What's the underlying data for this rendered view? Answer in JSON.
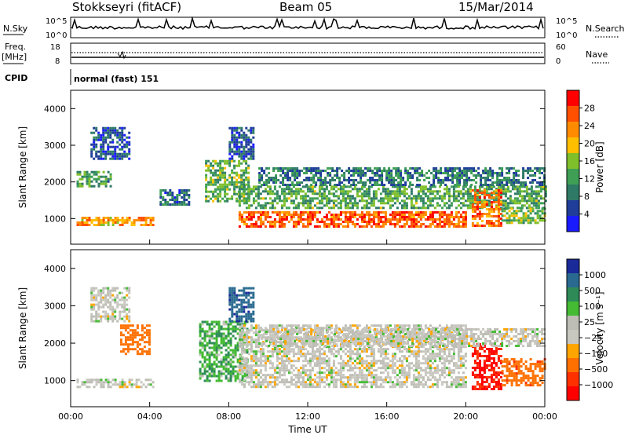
{
  "header": {
    "station": "Stokkseyri (fitACF)",
    "beam": "Beam 05",
    "date": "15/Mar/2014"
  },
  "strips": {
    "nsky_label": "N.Sky",
    "nsky_ticks": [
      "10^5",
      "10^0"
    ],
    "nsearch_label": "N.Search",
    "nsearch_ticks": [
      "10^5",
      "10^0"
    ],
    "freq_label": "Freq.",
    "freq_unit": "[MHz]",
    "freq_ticks": [
      "18",
      "8"
    ],
    "nave_label": "Nave",
    "nave_ticks": [
      "60",
      "0"
    ],
    "cpid_label": "CPID",
    "cpid_value": "normal (fast) 151"
  },
  "colors": {
    "power_scale": [
      "#1a1aff",
      "#1f3d99",
      "#2e7a66",
      "#3e9f55",
      "#7fbf2a",
      "#ffbf00",
      "#ff8c00",
      "#ff5000",
      "#ff0000"
    ],
    "velocity_scale": [
      "#1a2a99",
      "#2a6a90",
      "#2e8b57",
      "#44bb33",
      "#bdbdb5",
      "#c8c8c0",
      "#ffa500",
      "#ff7000",
      "#ff3000",
      "#ff0000"
    ]
  },
  "chart_data": [
    {
      "type": "heatmap",
      "panel": "power",
      "ylabel": "Slant Range [km]",
      "xlabel": "",
      "xlim": [
        0,
        24
      ],
      "ylim": [
        300,
        4500
      ],
      "yticks": [
        "1000",
        "2000",
        "3000",
        "4000"
      ],
      "colorbar": {
        "label": "Power [dB]",
        "ticks": [
          "28",
          "24",
          "20",
          "16",
          "12",
          "8",
          "4"
        ],
        "range": [
          0,
          32
        ]
      },
      "bands": [
        {
          "t0": 0.3,
          "t1": 4.2,
          "r0": 850,
          "r1": 1050,
          "value": 22
        },
        {
          "t0": 0.3,
          "t1": 2.0,
          "r0": 1900,
          "r1": 2300,
          "value": 12
        },
        {
          "t0": 1.0,
          "t1": 3.0,
          "r0": 2600,
          "r1": 3500,
          "value": 6
        },
        {
          "t0": 6.8,
          "t1": 9.0,
          "r0": 1500,
          "r1": 2600,
          "value": 14
        },
        {
          "t0": 8.5,
          "t1": 20.0,
          "r0": 800,
          "r1": 1200,
          "value": 26
        },
        {
          "t0": 8.5,
          "t1": 24.0,
          "r0": 1300,
          "r1": 1900,
          "value": 13
        },
        {
          "t0": 9.5,
          "t1": 24.0,
          "r0": 1900,
          "r1": 2400,
          "value": 9
        },
        {
          "t0": 20.3,
          "t1": 21.8,
          "r0": 800,
          "r1": 1800,
          "value": 25
        },
        {
          "t0": 21.8,
          "t1": 24.0,
          "r0": 850,
          "r1": 1300,
          "value": 15
        },
        {
          "t0": 8.0,
          "t1": 9.3,
          "r0": 2600,
          "r1": 3500,
          "value": 6
        },
        {
          "t0": 4.5,
          "t1": 6.0,
          "r0": 1400,
          "r1": 1800,
          "value": 8
        }
      ]
    },
    {
      "type": "heatmap",
      "panel": "velocity",
      "ylabel": "Slant Range [km]",
      "xlabel": "Time UT",
      "xlim": [
        0,
        24
      ],
      "ylim": [
        300,
        4500
      ],
      "xticks": [
        "00:00",
        "04:00",
        "08:00",
        "12:00",
        "16:00",
        "20:00",
        "00:00"
      ],
      "yticks": [
        "1000",
        "2000",
        "3000",
        "4000"
      ],
      "colorbar": {
        "label": "Velocity [m s⁻¹]",
        "ticks": [
          "1000",
          "500",
          "100",
          "25",
          "−25",
          "−100",
          "−500",
          "−1000"
        ]
      },
      "bands": [
        {
          "t0": 0.3,
          "t1": 4.2,
          "r0": 850,
          "r1": 1050,
          "value": 0
        },
        {
          "t0": 1.0,
          "t1": 3.0,
          "r0": 2600,
          "r1": 3500,
          "value": 0
        },
        {
          "t0": 2.5,
          "t1": 4.0,
          "r0": 1700,
          "r1": 2500,
          "value": -300
        },
        {
          "t0": 6.5,
          "t1": 9.0,
          "r0": 1000,
          "r1": 2600,
          "value": 50
        },
        {
          "t0": 8.0,
          "t1": 9.3,
          "r0": 2600,
          "r1": 3500,
          "value": 600
        },
        {
          "t0": 8.5,
          "t1": 20.0,
          "r0": 800,
          "r1": 2500,
          "value": 0
        },
        {
          "t0": 20.3,
          "t1": 21.8,
          "r0": 800,
          "r1": 2000,
          "value": -900
        },
        {
          "t0": 21.8,
          "t1": 24.0,
          "r0": 850,
          "r1": 1600,
          "value": -400
        },
        {
          "t0": 9.5,
          "t1": 24.0,
          "r0": 1900,
          "r1": 2400,
          "value": 0
        }
      ]
    }
  ]
}
